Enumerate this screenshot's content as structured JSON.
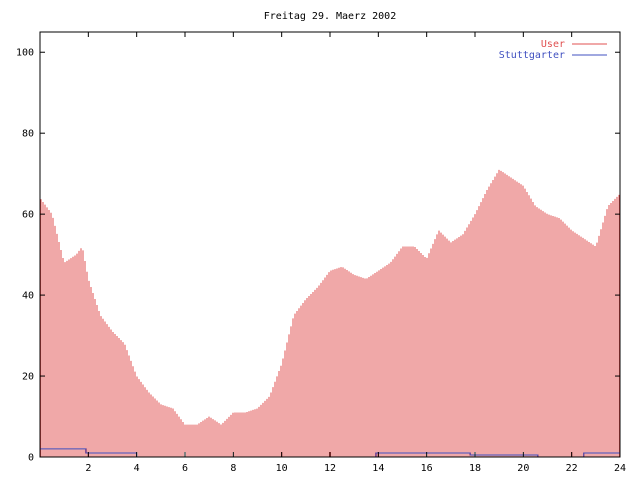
{
  "chart_data": {
    "type": "bar",
    "title": "Freitag 29. Maerz 2002",
    "xlabel": "",
    "ylabel": "",
    "xlim": [
      0,
      24
    ],
    "ylim": [
      0,
      105
    ],
    "x_ticks": [
      2,
      4,
      6,
      8,
      10,
      12,
      14,
      16,
      18,
      20,
      22,
      24
    ],
    "y_ticks": [
      0,
      20,
      40,
      60,
      80,
      100
    ],
    "grid": false,
    "legend_position": "top-right",
    "series": [
      {
        "name": "User",
        "color": "#e05050",
        "style": "impulses",
        "x": [
          0,
          0.5,
          1,
          1.5,
          1.75,
          2,
          2.5,
          3,
          3.5,
          4,
          4.5,
          5,
          5.5,
          6,
          6.5,
          7,
          7.5,
          8,
          8.5,
          9,
          9.5,
          10,
          10.5,
          11,
          11.5,
          12,
          12.5,
          13,
          13.5,
          14,
          14.5,
          15,
          15.5,
          16,
          16.5,
          17,
          17.5,
          18,
          18.5,
          19,
          19.5,
          20,
          20.5,
          21,
          21.5,
          22,
          22.5,
          23,
          23.5,
          24
        ],
        "values": [
          64,
          60,
          48,
          50,
          52,
          44,
          35,
          31,
          28,
          20,
          16,
          13,
          12,
          8,
          8,
          10,
          8,
          11,
          11,
          12,
          15,
          23,
          35,
          39,
          42,
          46,
          47,
          45,
          44,
          46,
          48,
          52,
          52,
          49,
          56,
          53,
          55,
          60,
          66,
          71,
          69,
          67,
          62,
          60,
          59,
          56,
          54,
          52,
          62,
          65
        ]
      },
      {
        "name": "Stuttgarter",
        "color": "#4050c0",
        "style": "steps",
        "x": [
          0,
          1.9,
          4,
          13.9,
          17.8,
          20.6,
          22.5,
          23.9
        ],
        "values": [
          2,
          1,
          0,
          1,
          0.5,
          0,
          1,
          1
        ]
      }
    ]
  }
}
